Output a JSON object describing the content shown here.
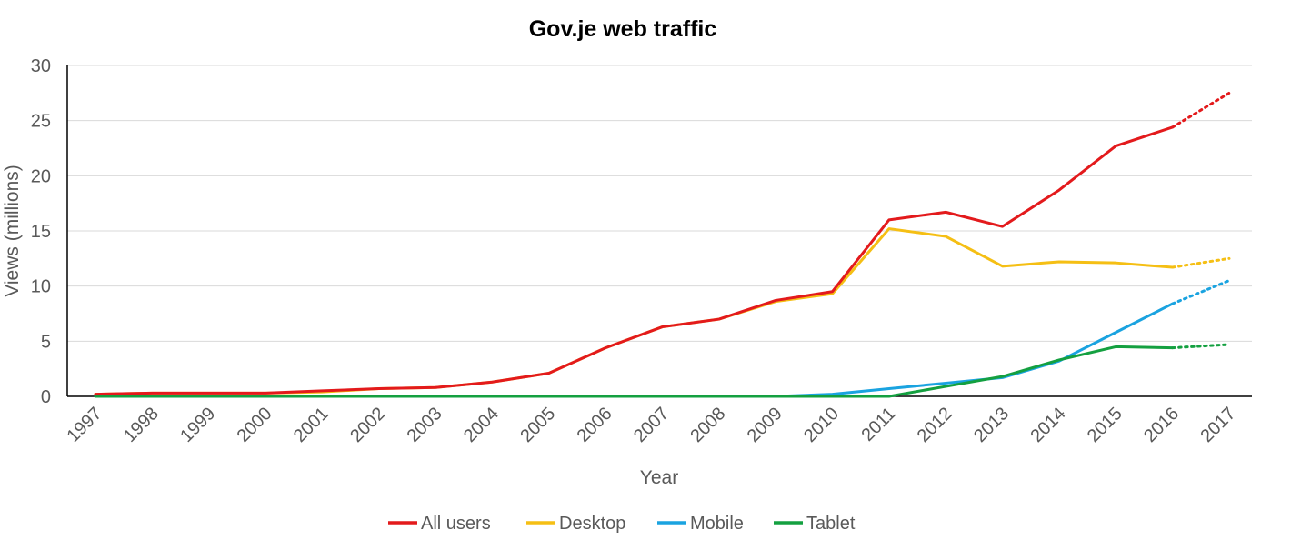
{
  "chart_data": {
    "type": "line",
    "title": "Gov.je web traffic",
    "xlabel": "Year",
    "ylabel": "Views (millions)",
    "ylim": [
      0,
      30
    ],
    "yticks": [
      "0",
      "5",
      "10",
      "15",
      "20",
      "25",
      "30"
    ],
    "categories": [
      "1997",
      "1998",
      "1999",
      "2000",
      "2001",
      "2002",
      "2003",
      "2004",
      "2005",
      "2006",
      "2007",
      "2008",
      "2009",
      "2010",
      "2011",
      "2012",
      "2013",
      "2014",
      "2015",
      "2016",
      "2017"
    ],
    "grid": true,
    "legend_position": "bottom",
    "projection": {
      "from": "2016",
      "to": "2017",
      "style": "dotted"
    },
    "series": [
      {
        "name": "All users",
        "color": "#e31a1c",
        "values": [
          0.2,
          0.3,
          0.3,
          0.3,
          0.5,
          0.7,
          0.8,
          1.3,
          2.1,
          4.4,
          6.3,
          7.0,
          8.7,
          9.5,
          16.0,
          16.7,
          15.4,
          18.7,
          22.7,
          24.4,
          27.5
        ]
      },
      {
        "name": "Desktop",
        "color": "#f5bf14",
        "values": [
          0.2,
          0.3,
          0.3,
          0.3,
          0.4,
          0.7,
          0.8,
          1.3,
          2.1,
          4.4,
          6.3,
          7.0,
          8.6,
          9.3,
          15.2,
          14.5,
          11.8,
          12.2,
          12.1,
          11.7,
          12.5
        ]
      },
      {
        "name": "Mobile",
        "color": "#1aa3e0",
        "values": [
          0,
          0,
          0,
          0,
          0,
          0,
          0,
          0,
          0,
          0,
          0,
          0,
          0,
          0.2,
          0.7,
          1.2,
          1.7,
          3.2,
          5.8,
          8.4,
          10.5
        ]
      },
      {
        "name": "Tablet",
        "color": "#14a040",
        "values": [
          0,
          0,
          0,
          0,
          0,
          0,
          0,
          0,
          0,
          0,
          0,
          0,
          0,
          0,
          0,
          0.9,
          1.8,
          3.3,
          4.5,
          4.4,
          4.7
        ]
      }
    ]
  }
}
